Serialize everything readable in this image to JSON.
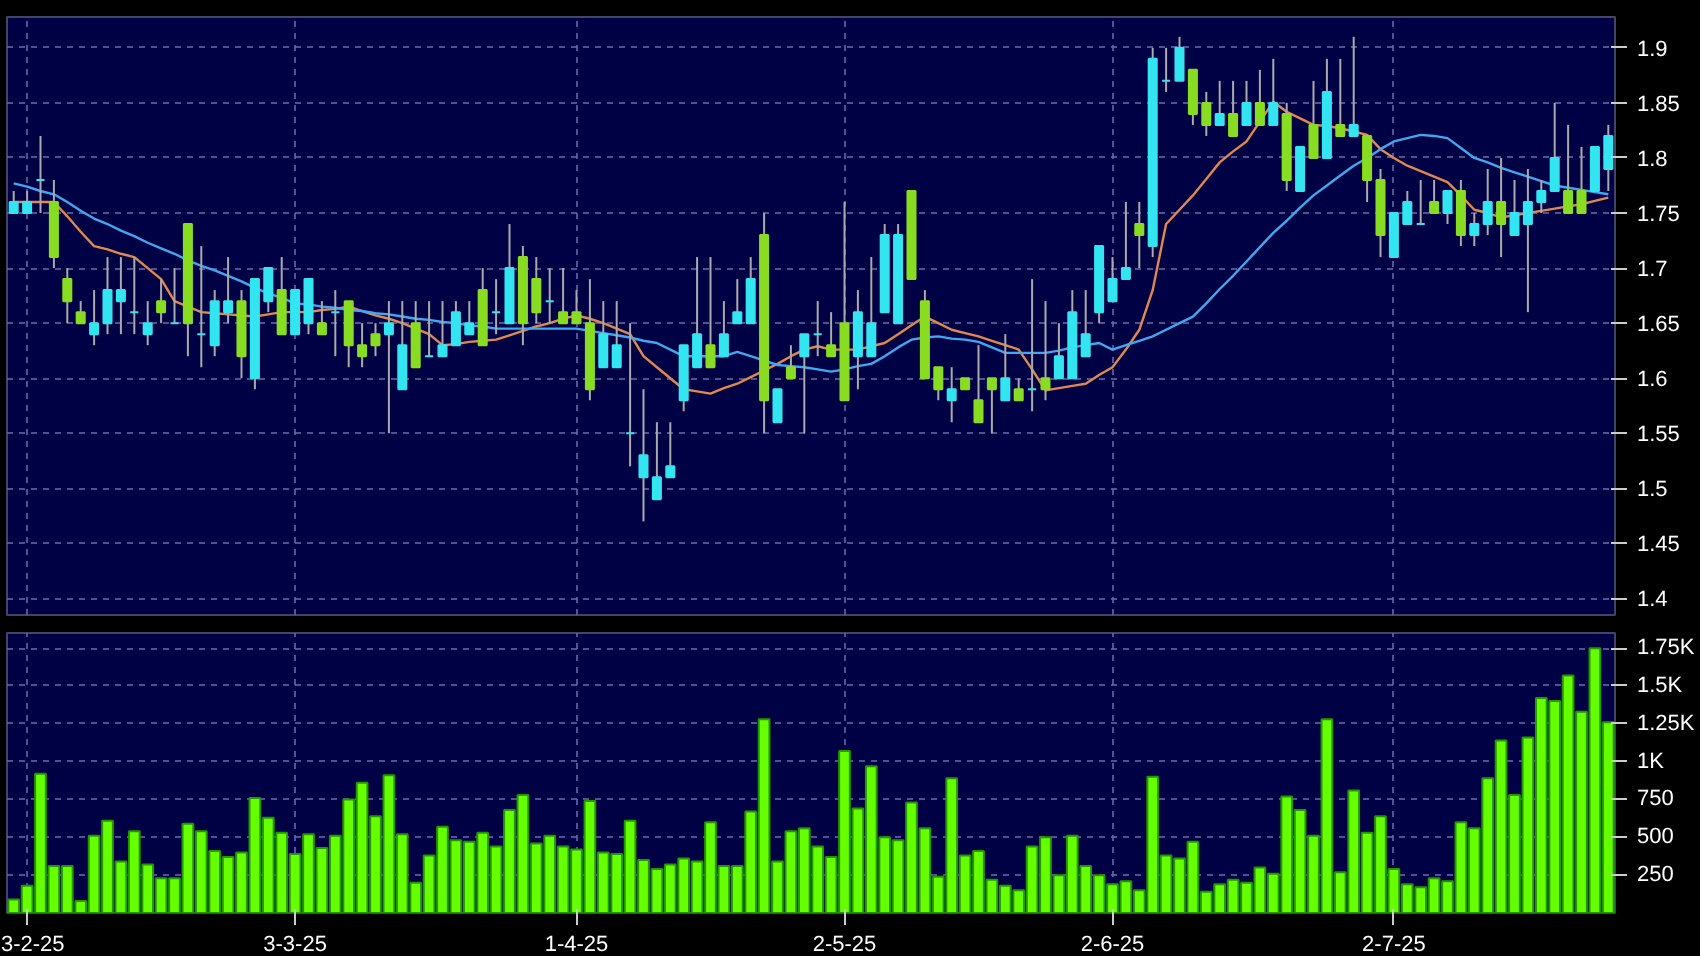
{
  "chart_data": [
    {
      "type": "candlestick",
      "grid": true,
      "tick_labels": "y",
      "categories": [
        null,
        null,
        null,
        null,
        null,
        null,
        null,
        null,
        null,
        null,
        null,
        null,
        null,
        null,
        null,
        null,
        null,
        null,
        null,
        null,
        null,
        null,
        null,
        null,
        null,
        null,
        null,
        null,
        null,
        null,
        null,
        null,
        null,
        null,
        null,
        null,
        null,
        null,
        null,
        null,
        null,
        null,
        null,
        null,
        null,
        null,
        null,
        null,
        null,
        null,
        null,
        null,
        null,
        null,
        null,
        null,
        null,
        null,
        null,
        null,
        null,
        null,
        null,
        null,
        null,
        null,
        null,
        null,
        null,
        null,
        null,
        null,
        null,
        null,
        null,
        null,
        null,
        null,
        null,
        null,
        null,
        null,
        null,
        null,
        null,
        null,
        null,
        null,
        null,
        null,
        null,
        null,
        null,
        null,
        null,
        null,
        null,
        null,
        null,
        null,
        null,
        null,
        null,
        null,
        null,
        null,
        null,
        null,
        null,
        null,
        null,
        null,
        null,
        null,
        null,
        null,
        null,
        null,
        null,
        null
      ],
      "colors": [
        "#33e5f0",
        "#33e5f0",
        "#33e5f0",
        "#88dd22",
        "#88dd22",
        "#88dd22",
        "#33e5f0",
        "#33e5f0",
        "#33e5f0",
        "#33e5f0",
        "#33e5f0",
        "#88dd22",
        "#33e5f0",
        "#88dd22",
        "#33e5f0",
        "#33e5f0",
        "#33e5f0",
        "#88dd22",
        "#33e5f0",
        "#33e5f0",
        "#88dd22",
        "#33e5f0",
        "#33e5f0",
        "#88dd22",
        "#33e5f0",
        "#88dd22",
        "#88dd22",
        "#88dd22",
        "#33e5f0",
        "#33e5f0",
        "#88dd22",
        "#33e5f0",
        "#33e5f0",
        "#33e5f0",
        "#33e5f0",
        "#88dd22",
        "#33e5f0",
        "#33e5f0",
        "#88dd22",
        "#88dd22",
        "#33e5f0",
        "#88dd22",
        "#88dd22",
        "#88dd22",
        "#33e5f0",
        "#33e5f0",
        "#33e5f0",
        "#33e5f0",
        "#33e5f0",
        "#33e5f0",
        "#33e5f0",
        "#33e5f0",
        "#88dd22",
        "#33e5f0",
        "#33e5f0",
        "#33e5f0",
        "#88dd22",
        "#33e5f0",
        "#88dd22",
        "#33e5f0",
        "#33e5f0",
        "#88dd22",
        "#88dd22",
        "#33e5f0",
        "#33e5f0",
        "#33e5f0",
        "#33e5f0",
        "#88dd22",
        "#88dd22",
        "#88dd22",
        "#33e5f0",
        "#88dd22",
        "#88dd22",
        "#88dd22",
        "#33e5f0",
        "#88dd22",
        "#33e5f0",
        "#88dd22",
        "#33e5f0",
        "#33e5f0",
        "#33e5f0",
        "#33e5f0",
        "#33e5f0",
        "#33e5f0",
        "#88dd22",
        "#33e5f0",
        "#33e5f0",
        "#33e5f0",
        "#88dd22",
        "#88dd22",
        "#33e5f0",
        "#88dd22",
        "#33e5f0",
        "#88dd22",
        "#33e5f0",
        "#88dd22",
        "#33e5f0",
        "#88dd22",
        "#33e5f0",
        "#88dd22",
        "#33e5f0",
        "#88dd22",
        "#88dd22",
        "#33e5f0",
        "#33e5f0",
        "#33e5f0",
        "#88dd22",
        "#33e5f0",
        "#88dd22",
        "#33e5f0",
        "#33e5f0",
        "#88dd22",
        "#33e5f0",
        "#33e5f0",
        "#33e5f0",
        "#33e5f0",
        "#88dd22",
        "#88dd22",
        "#33e5f0",
        "#33e5f0"
      ],
      "ohlc": [
        [
          1.75,
          1.77,
          1.75,
          1.76
        ],
        [
          1.75,
          1.77,
          1.75,
          1.76
        ],
        [
          1.78,
          1.82,
          1.75,
          1.78
        ],
        [
          1.76,
          1.78,
          1.7,
          1.71
        ],
        [
          1.69,
          1.7,
          1.65,
          1.67
        ],
        [
          1.66,
          1.67,
          1.65,
          1.65
        ],
        [
          1.64,
          1.68,
          1.63,
          1.65
        ],
        [
          1.65,
          1.71,
          1.64,
          1.68
        ],
        [
          1.67,
          1.71,
          1.64,
          1.68
        ],
        [
          1.66,
          1.71,
          1.64,
          1.66
        ],
        [
          1.64,
          1.67,
          1.63,
          1.65
        ],
        [
          1.67,
          1.69,
          1.65,
          1.66
        ],
        [
          1.65,
          1.7,
          1.65,
          1.65
        ],
        [
          1.74,
          1.74,
          1.62,
          1.65
        ],
        [
          1.64,
          1.72,
          1.61,
          1.64
        ],
        [
          1.63,
          1.68,
          1.62,
          1.67
        ],
        [
          1.66,
          1.71,
          1.65,
          1.67
        ],
        [
          1.67,
          1.68,
          1.6,
          1.62
        ],
        [
          1.6,
          1.69,
          1.59,
          1.69
        ],
        [
          1.67,
          1.7,
          1.66,
          1.7
        ],
        [
          1.68,
          1.71,
          1.64,
          1.64
        ],
        [
          1.64,
          1.68,
          1.64,
          1.68
        ],
        [
          1.65,
          1.69,
          1.64,
          1.69
        ],
        [
          1.65,
          1.67,
          1.64,
          1.64
        ],
        [
          1.66,
          1.68,
          1.62,
          1.66
        ],
        [
          1.67,
          1.67,
          1.61,
          1.63
        ],
        [
          1.63,
          1.65,
          1.61,
          1.62
        ],
        [
          1.64,
          1.65,
          1.62,
          1.63
        ],
        [
          1.64,
          1.67,
          1.55,
          1.65
        ],
        [
          1.59,
          1.67,
          1.59,
          1.63
        ],
        [
          1.65,
          1.67,
          1.61,
          1.61
        ],
        [
          1.62,
          1.67,
          1.62,
          1.62
        ],
        [
          1.62,
          1.67,
          1.62,
          1.63
        ],
        [
          1.63,
          1.67,
          1.63,
          1.66
        ],
        [
          1.64,
          1.67,
          1.64,
          1.65
        ],
        [
          1.68,
          1.7,
          1.63,
          1.63
        ],
        [
          1.66,
          1.69,
          1.64,
          1.66
        ],
        [
          1.65,
          1.74,
          1.65,
          1.7
        ],
        [
          1.71,
          1.72,
          1.63,
          1.65
        ],
        [
          1.69,
          1.71,
          1.65,
          1.66
        ],
        [
          1.67,
          1.7,
          1.65,
          1.67
        ],
        [
          1.66,
          1.7,
          1.65,
          1.65
        ],
        [
          1.66,
          1.68,
          1.65,
          1.65
        ],
        [
          1.65,
          1.69,
          1.58,
          1.59
        ],
        [
          1.61,
          1.67,
          1.61,
          1.64
        ],
        [
          1.61,
          1.67,
          1.61,
          1.63
        ],
        [
          1.55,
          1.65,
          1.52,
          1.55
        ],
        [
          1.51,
          1.59,
          1.47,
          1.53
        ],
        [
          1.49,
          1.56,
          1.49,
          1.51
        ],
        [
          1.51,
          1.56,
          1.51,
          1.52
        ],
        [
          1.58,
          1.63,
          1.57,
          1.63
        ],
        [
          1.61,
          1.71,
          1.61,
          1.64
        ],
        [
          1.63,
          1.71,
          1.61,
          1.61
        ],
        [
          1.62,
          1.67,
          1.62,
          1.64
        ],
        [
          1.65,
          1.69,
          1.65,
          1.66
        ],
        [
          1.65,
          1.71,
          1.65,
          1.69
        ],
        [
          1.73,
          1.75,
          1.55,
          1.58
        ],
        [
          1.56,
          1.59,
          1.56,
          1.59
        ],
        [
          1.61,
          1.63,
          1.6,
          1.6
        ],
        [
          1.62,
          1.64,
          1.55,
          1.64
        ],
        [
          1.64,
          1.67,
          1.62,
          1.64
        ],
        [
          1.63,
          1.66,
          1.62,
          1.62
        ],
        [
          1.65,
          1.76,
          1.58,
          1.58
        ],
        [
          1.62,
          1.68,
          1.59,
          1.66
        ],
        [
          1.62,
          1.71,
          1.62,
          1.65
        ],
        [
          1.66,
          1.74,
          1.66,
          1.73
        ],
        [
          1.65,
          1.74,
          1.65,
          1.73
        ],
        [
          1.77,
          1.77,
          1.69,
          1.69
        ],
        [
          1.67,
          1.68,
          1.6,
          1.6
        ],
        [
          1.61,
          1.61,
          1.58,
          1.59
        ],
        [
          1.58,
          1.61,
          1.56,
          1.59
        ],
        [
          1.6,
          1.6,
          1.59,
          1.59
        ],
        [
          1.58,
          1.63,
          1.56,
          1.56
        ],
        [
          1.6,
          1.6,
          1.55,
          1.59
        ],
        [
          1.58,
          1.64,
          1.58,
          1.6
        ],
        [
          1.59,
          1.6,
          1.58,
          1.58
        ],
        [
          1.59,
          1.69,
          1.57,
          1.59
        ],
        [
          1.6,
          1.67,
          1.58,
          1.59
        ],
        [
          1.6,
          1.65,
          1.6,
          1.62
        ],
        [
          1.6,
          1.68,
          1.6,
          1.66
        ],
        [
          1.62,
          1.68,
          1.62,
          1.64
        ],
        [
          1.66,
          1.72,
          1.65,
          1.72
        ],
        [
          1.67,
          1.71,
          1.67,
          1.69
        ],
        [
          1.69,
          1.76,
          1.69,
          1.7
        ],
        [
          1.74,
          1.76,
          1.7,
          1.73
        ],
        [
          1.72,
          1.9,
          1.71,
          1.89
        ],
        [
          1.87,
          1.9,
          1.86,
          1.87
        ],
        [
          1.87,
          1.91,
          1.87,
          1.9
        ],
        [
          1.88,
          1.88,
          1.83,
          1.84
        ],
        [
          1.85,
          1.86,
          1.82,
          1.83
        ],
        [
          1.83,
          1.87,
          1.83,
          1.84
        ],
        [
          1.84,
          1.87,
          1.82,
          1.82
        ],
        [
          1.83,
          1.87,
          1.83,
          1.85
        ],
        [
          1.85,
          1.88,
          1.83,
          1.83
        ],
        [
          1.83,
          1.89,
          1.83,
          1.85
        ],
        [
          1.84,
          1.85,
          1.77,
          1.78
        ],
        [
          1.77,
          1.81,
          1.77,
          1.81
        ],
        [
          1.83,
          1.87,
          1.8,
          1.8
        ],
        [
          1.8,
          1.89,
          1.8,
          1.86
        ],
        [
          1.83,
          1.89,
          1.82,
          1.82
        ],
        [
          1.82,
          1.91,
          1.82,
          1.83
        ],
        [
          1.82,
          1.82,
          1.76,
          1.78
        ],
        [
          1.78,
          1.79,
          1.71,
          1.73
        ],
        [
          1.71,
          1.75,
          1.71,
          1.75
        ],
        [
          1.74,
          1.77,
          1.74,
          1.76
        ],
        [
          1.74,
          1.78,
          1.74,
          1.74
        ],
        [
          1.76,
          1.78,
          1.75,
          1.75
        ],
        [
          1.75,
          1.77,
          1.74,
          1.77
        ],
        [
          1.77,
          1.78,
          1.72,
          1.73
        ],
        [
          1.73,
          1.75,
          1.72,
          1.74
        ],
        [
          1.74,
          1.79,
          1.73,
          1.76
        ],
        [
          1.76,
          1.8,
          1.71,
          1.74
        ],
        [
          1.73,
          1.78,
          1.73,
          1.75
        ],
        [
          1.74,
          1.79,
          1.66,
          1.76
        ],
        [
          1.76,
          1.78,
          1.75,
          1.77
        ],
        [
          1.77,
          1.85,
          1.77,
          1.8
        ],
        [
          1.77,
          1.83,
          1.75,
          1.75
        ],
        [
          1.77,
          1.81,
          1.75,
          1.75
        ],
        [
          1.77,
          1.81,
          1.77,
          1.81
        ],
        [
          1.79,
          1.83,
          1.77,
          1.82
        ]
      ],
      "series": [
        {
          "type": "line",
          "color": "#e08850",
          "values": [
            1.76,
            1.76,
            1.76,
            1.76,
            1.747,
            1.733,
            1.72,
            1.717,
            1.713,
            1.71,
            1.7,
            1.69,
            1.67,
            1.665,
            1.66,
            1.659,
            1.658,
            1.657,
            1.656,
            1.658,
            1.66,
            1.66,
            1.66,
            1.662,
            1.663,
            1.665,
            1.661,
            1.657,
            1.654,
            1.65,
            1.645,
            1.64,
            1.63,
            1.631,
            1.633,
            1.634,
            1.635,
            1.639,
            1.643,
            1.647,
            1.65,
            1.654,
            1.657,
            1.654,
            1.65,
            1.645,
            1.64,
            1.62,
            1.61,
            1.6,
            1.59,
            1.588,
            1.586,
            1.591,
            1.595,
            1.601,
            1.607,
            1.613,
            1.62,
            1.626,
            1.629,
            1.626,
            1.626,
            1.626,
            1.629,
            1.632,
            1.64,
            1.648,
            1.656,
            1.65,
            1.644,
            1.641,
            1.638,
            1.634,
            1.63,
            1.626,
            1.608,
            1.589,
            1.591,
            1.593,
            1.595,
            1.603,
            1.61,
            1.626,
            1.644,
            1.68,
            1.74,
            1.753,
            1.766,
            1.781,
            1.796,
            1.806,
            1.815,
            1.833,
            1.851,
            1.842,
            1.836,
            1.83,
            1.829,
            1.827,
            1.824,
            1.821,
            1.808,
            1.8,
            1.793,
            1.788,
            1.783,
            1.778,
            1.766,
            1.753,
            1.75,
            1.746,
            1.748,
            1.75,
            1.752,
            1.754,
            1.756,
            1.758,
            1.761,
            1.764
          ]
        },
        {
          "type": "line",
          "color": "#40a8f0",
          "values": [
            1.777,
            1.774,
            1.77,
            1.767,
            1.76,
            1.752,
            1.745,
            1.74,
            1.734,
            1.729,
            1.723,
            1.718,
            1.713,
            1.707,
            1.702,
            1.698,
            1.693,
            1.688,
            1.682,
            1.677,
            1.673,
            1.668,
            1.667,
            1.665,
            1.664,
            1.662,
            1.661,
            1.659,
            1.658,
            1.656,
            1.654,
            1.653,
            1.651,
            1.65,
            1.648,
            1.647,
            1.645,
            1.645,
            1.645,
            1.645,
            1.645,
            1.645,
            1.645,
            1.643,
            1.641,
            1.639,
            1.637,
            1.634,
            1.632,
            1.626,
            1.62,
            1.62,
            1.62,
            1.62,
            1.624,
            1.62,
            1.616,
            1.612,
            1.611,
            1.61,
            1.608,
            1.606,
            1.608,
            1.611,
            1.613,
            1.62,
            1.628,
            1.635,
            1.637,
            1.638,
            1.636,
            1.635,
            1.633,
            1.628,
            1.623,
            1.623,
            1.623,
            1.623,
            1.625,
            1.628,
            1.63,
            1.632,
            1.626,
            1.63,
            1.634,
            1.638,
            1.644,
            1.65,
            1.656,
            1.668,
            1.681,
            1.693,
            1.706,
            1.719,
            1.732,
            1.743,
            1.755,
            1.766,
            1.775,
            1.784,
            1.793,
            1.8,
            1.808,
            1.815,
            1.818,
            1.821,
            1.82,
            1.818,
            1.809,
            1.8,
            1.796,
            1.791,
            1.787,
            1.783,
            1.779,
            1.775,
            1.773,
            1.771,
            1.769,
            1.767
          ]
        }
      ],
      "ylim": [
        1.385,
        1.928
      ],
      "yticks": [
        1.4,
        1.45,
        1.5,
        1.55,
        1.6,
        1.65,
        1.7,
        1.75,
        1.8,
        1.85,
        1.9
      ]
    },
    {
      "type": "bar",
      "color": "#66ff00",
      "grid": true,
      "categories": [
        null,
        "3-2-25",
        null,
        null,
        null,
        null,
        null,
        null,
        null,
        null,
        null,
        null,
        null,
        null,
        null,
        null,
        null,
        null,
        null,
        null,
        null,
        "3-3-25",
        null,
        null,
        null,
        null,
        null,
        null,
        null,
        null,
        null,
        null,
        null,
        null,
        null,
        null,
        null,
        null,
        null,
        null,
        null,
        null,
        "1-4-25",
        null,
        null,
        null,
        null,
        null,
        null,
        null,
        null,
        null,
        null,
        null,
        null,
        null,
        null,
        null,
        null,
        null,
        null,
        null,
        "2-5-25",
        null,
        null,
        null,
        null,
        null,
        null,
        null,
        null,
        null,
        null,
        null,
        null,
        null,
        null,
        null,
        null,
        null,
        null,
        null,
        "2-6-25",
        null,
        null,
        null,
        null,
        null,
        null,
        null,
        null,
        null,
        null,
        null,
        null,
        null,
        null,
        null,
        null,
        null,
        null,
        null,
        null,
        "2-7-25",
        null,
        null,
        null,
        null,
        null,
        null,
        null,
        null,
        null,
        null,
        null,
        null,
        null,
        null,
        null,
        null
      ],
      "values": [
        90,
        180,
        920,
        310,
        310,
        80,
        510,
        610,
        340,
        540,
        320,
        230,
        230,
        590,
        540,
        410,
        370,
        400,
        760,
        630,
        530,
        390,
        520,
        430,
        510,
        750,
        860,
        640,
        910,
        520,
        200,
        380,
        570,
        480,
        470,
        530,
        440,
        680,
        780,
        460,
        510,
        440,
        420,
        740,
        400,
        390,
        610,
        350,
        290,
        320,
        360,
        340,
        600,
        310,
        310,
        670,
        1280,
        340,
        540,
        560,
        440,
        370,
        1070,
        690,
        970,
        500,
        480,
        730,
        560,
        240,
        890,
        380,
        410,
        220,
        180,
        150,
        440,
        500,
        250,
        510,
        310,
        250,
        190,
        210,
        150,
        900,
        380,
        360,
        470,
        140,
        190,
        220,
        200,
        300,
        260,
        770,
        680,
        510,
        1280,
        270,
        810,
        530,
        640,
        290,
        190,
        170,
        230,
        210,
        600,
        560,
        890,
        1140,
        780,
        1160,
        1420,
        1400,
        1570,
        1330,
        1750,
        1260
      ],
      "ylim": [
        0,
        1850
      ],
      "yticks": [
        250,
        500,
        750,
        {
          "value": 1000,
          "label": "1K"
        },
        {
          "value": 1250,
          "label": "1.25K"
        },
        {
          "value": 1500,
          "label": "1.5K"
        },
        {
          "value": 1750,
          "label": "1.75K"
        }
      ]
    }
  ]
}
